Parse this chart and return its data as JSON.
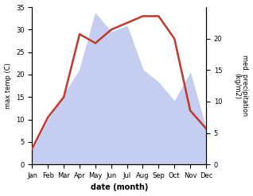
{
  "months": [
    "Jan",
    "Feb",
    "Mar",
    "Apr",
    "May",
    "Jun",
    "Jul",
    "Aug",
    "Sep",
    "Oct",
    "Nov",
    "Dec"
  ],
  "temperature": [
    3.5,
    10.5,
    15.0,
    29.0,
    27.0,
    30.0,
    31.5,
    33.0,
    33.0,
    28.0,
    12.0,
    8.0
  ],
  "precipitation": [
    2.0,
    7.0,
    11.0,
    15.0,
    24.0,
    21.0,
    22.0,
    15.0,
    13.0,
    10.0,
    14.5,
    5.5
  ],
  "temp_color": "#c0392b",
  "precip_fill_color": "#c5cef0",
  "temp_ylim": [
    0,
    35
  ],
  "precip_ylim": [
    0,
    25
  ],
  "temp_yticks": [
    0,
    5,
    10,
    15,
    20,
    25,
    30,
    35
  ],
  "precip_yticks": [
    0,
    5,
    10,
    15,
    20
  ],
  "xlabel": "date (month)",
  "ylabel_left": "max temp (C)",
  "ylabel_right": "med. precipitation\n(kg/m2)",
  "temp_linewidth": 1.8,
  "fig_width": 3.18,
  "fig_height": 2.47,
  "dpi": 100
}
